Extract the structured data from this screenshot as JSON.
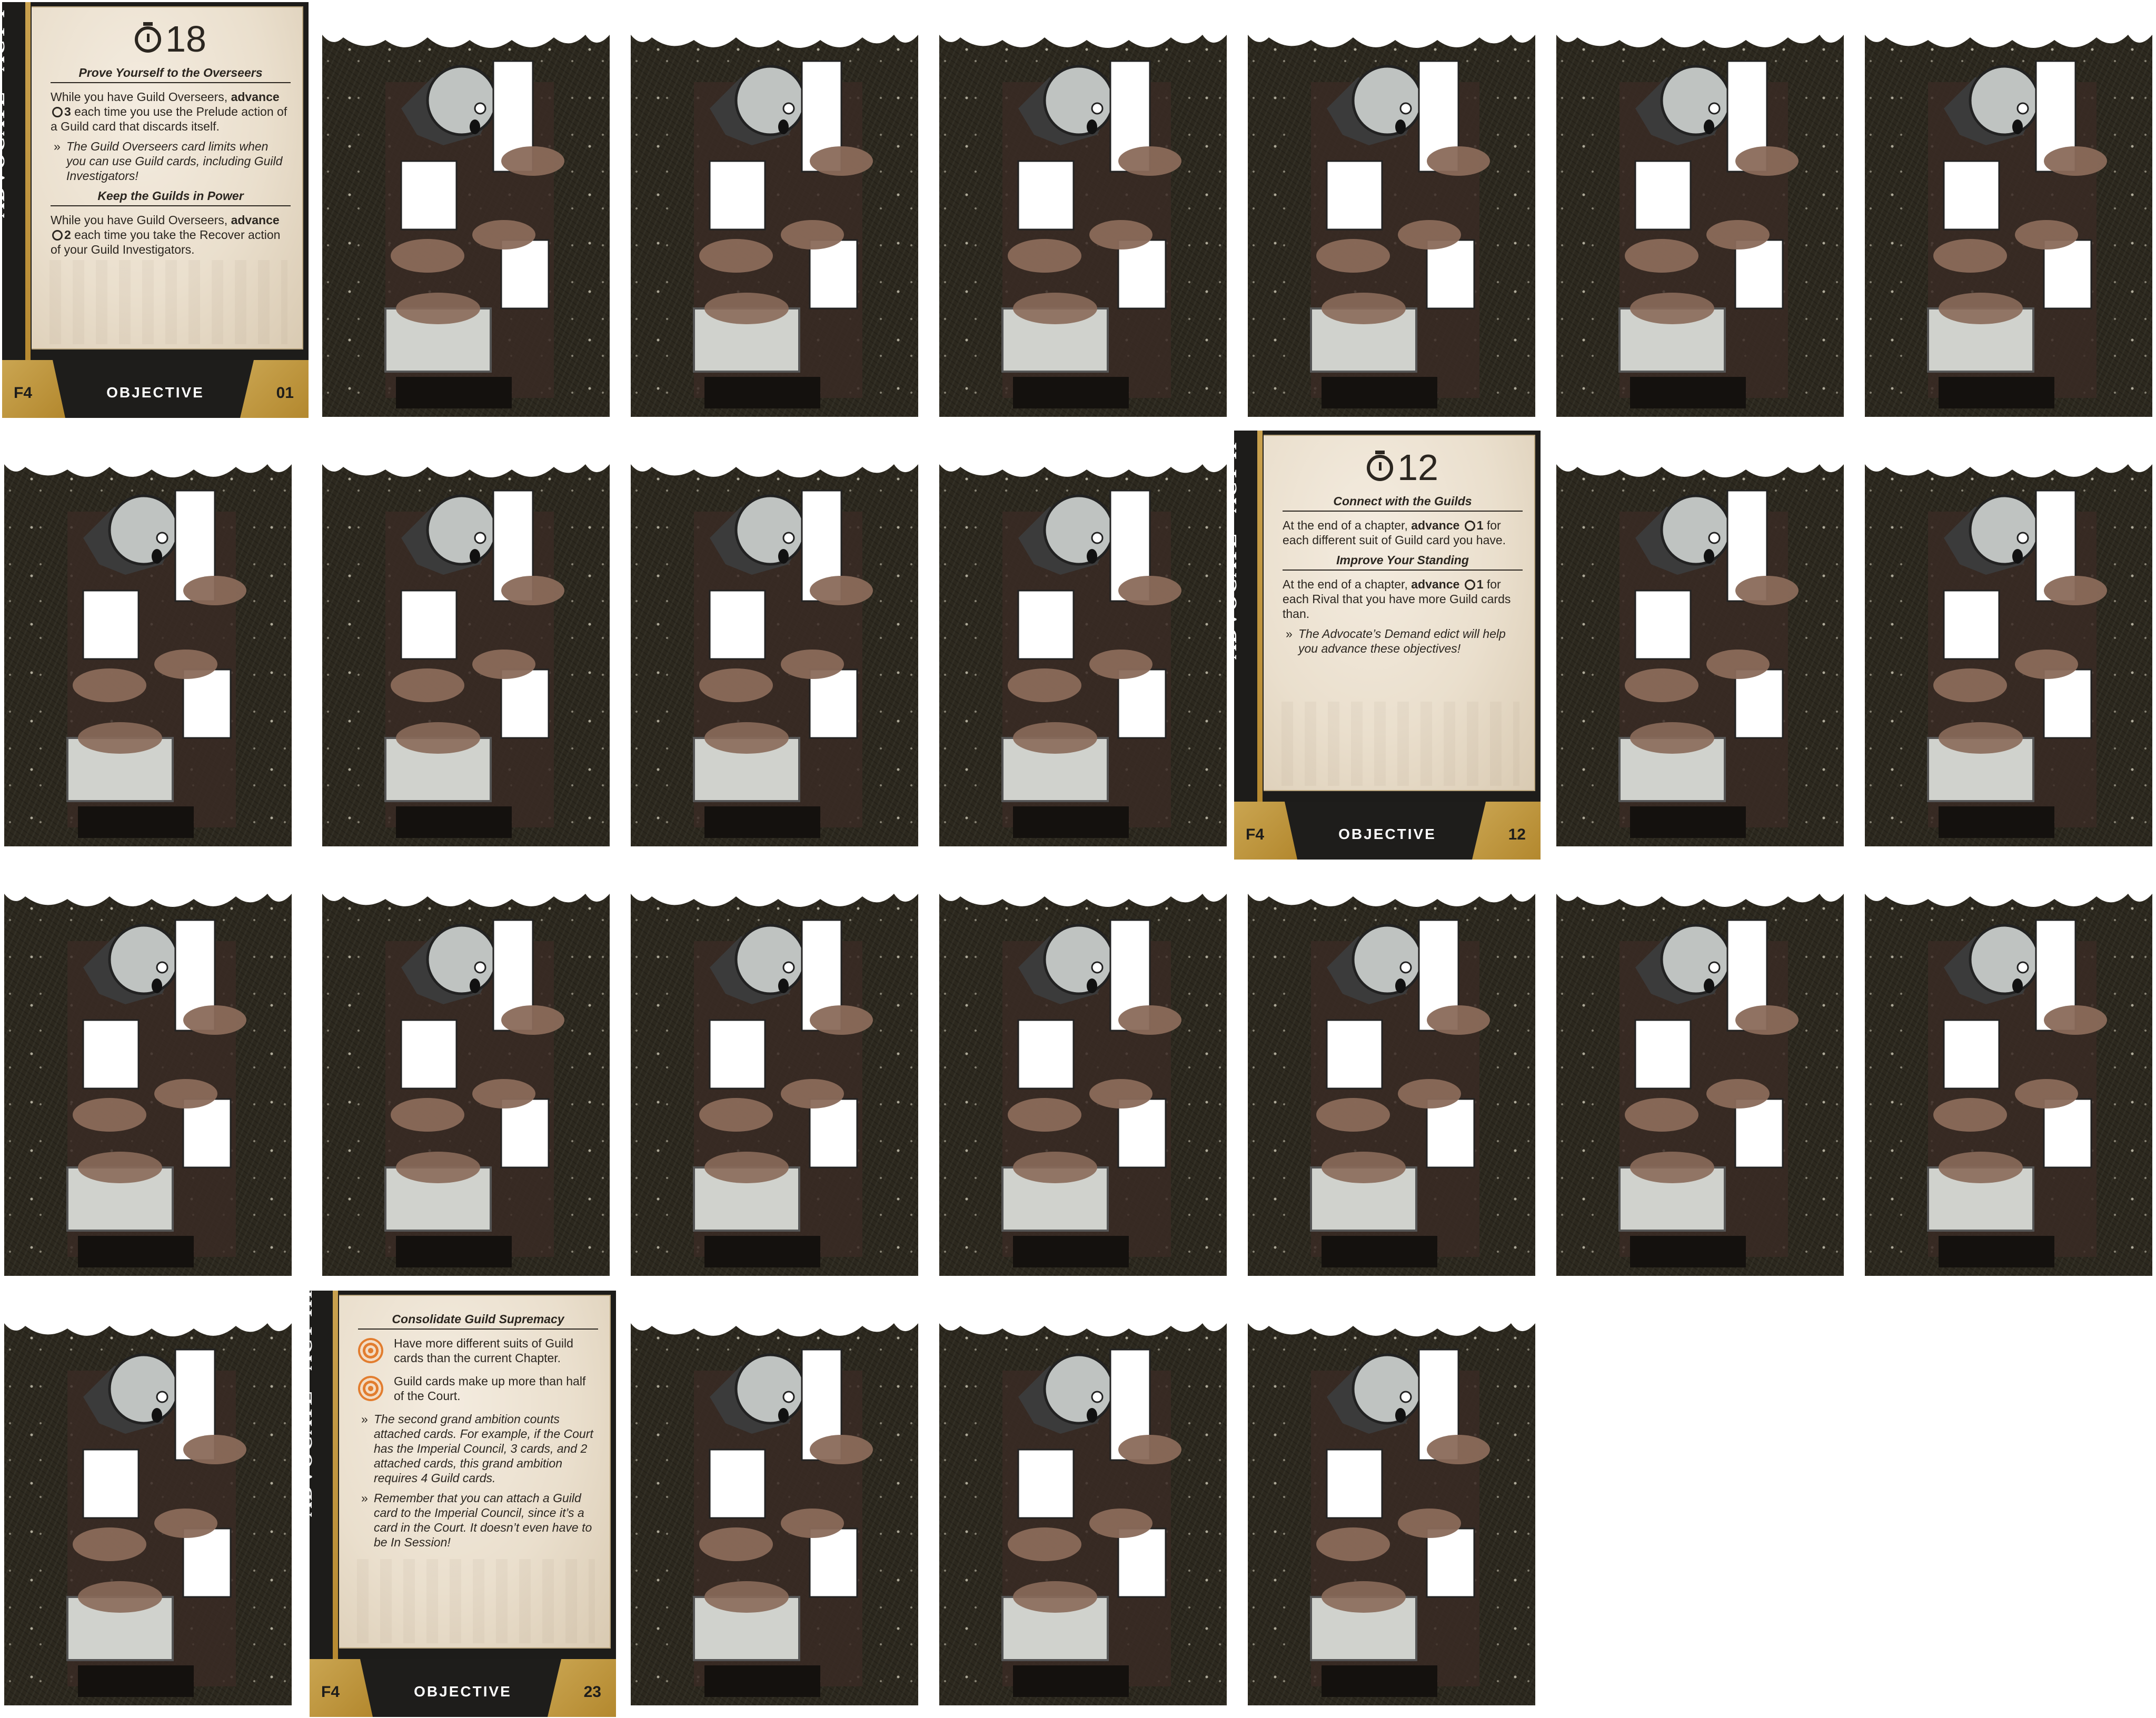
{
  "sheet": {
    "card_back": {
      "art": "advocate-bureaucrat-illustration",
      "colors": {
        "background": "#2c281e",
        "paper": "#ffffff",
        "skin": "#8a6a5a",
        "helmet": "#bfc3c1"
      }
    },
    "cards": [
      {
        "kind": "front"
      },
      {
        "kind": "back"
      },
      {
        "kind": "back"
      },
      {
        "kind": "back"
      },
      {
        "kind": "back"
      },
      {
        "kind": "back"
      },
      {
        "kind": "back"
      },
      {
        "kind": "back"
      },
      {
        "kind": "back"
      },
      {
        "kind": "back"
      },
      {
        "kind": "back"
      },
      {
        "kind": "front"
      },
      {
        "kind": "back"
      },
      {
        "kind": "back"
      },
      {
        "kind": "back"
      },
      {
        "kind": "back"
      },
      {
        "kind": "back"
      },
      {
        "kind": "back"
      },
      {
        "kind": "back"
      },
      {
        "kind": "back"
      },
      {
        "kind": "back"
      },
      {
        "kind": "back"
      },
      {
        "kind": "front"
      },
      {
        "kind": "back"
      },
      {
        "kind": "back"
      },
      {
        "kind": "back"
      }
    ],
    "objectives": [
      {
        "act_title": "ADVOCATE - ACT I",
        "clock": "18",
        "faction": "F4",
        "type": "OBJECTIVE",
        "number": "01",
        "sections": [
          {
            "heading": "Prove Yourself to the Overseers",
            "text_before": "While you have Guild Overseers, ",
            "bold": "advance",
            "amount": "3",
            "text_after": " each time you use the Prelude action of a Guild card that discards itself.",
            "note": "The Guild Overseers card limits when you can use Guild cards, including Guild Investigators!"
          },
          {
            "heading": "Keep the Guilds in Power",
            "text_before": "While you have Guild Overseers, ",
            "bold": "advance",
            "amount": "2",
            "text_after": " each time you take the Recover action of your Guild Investigators."
          }
        ]
      },
      {
        "act_title": "ADVOCATE - ACT II",
        "clock": "12",
        "faction": "F4",
        "type": "OBJECTIVE",
        "number": "12",
        "sections": [
          {
            "heading": "Connect with the Guilds",
            "text_before": "At the end of a chapter, ",
            "bold": "advance",
            "amount": "1",
            "text_after": " for each different suit of Guild card you have."
          },
          {
            "heading": "Improve Your Standing",
            "text_before": "At the end of a chapter, ",
            "bold": "advance",
            "amount": "1",
            "text_after": " for each Rival that you have more Guild cards than.",
            "note": "The Advocate’s Demand edict will help you advance these objectives!"
          }
        ]
      },
      {
        "act_title": "ADVOCATE - ACT III",
        "faction": "F4",
        "type": "OBJECTIVE",
        "number": "23",
        "heading": "Consolidate Guild Supremacy",
        "ambitions": [
          "Have more different suits of Guild cards than the current Chapter.",
          "Guild cards make up more than half of the Court."
        ],
        "notes": [
          "The second grand ambition counts attached cards. For example, if the Court has the Imperial Council, 3 cards, and 2 attached cards, this grand ambition requires 4 Guild cards.",
          "Remember that you can attach a Guild card to the Imperial Council, since it’s a card in the Court. It doesn’t even have to be In Session!"
        ]
      }
    ]
  }
}
